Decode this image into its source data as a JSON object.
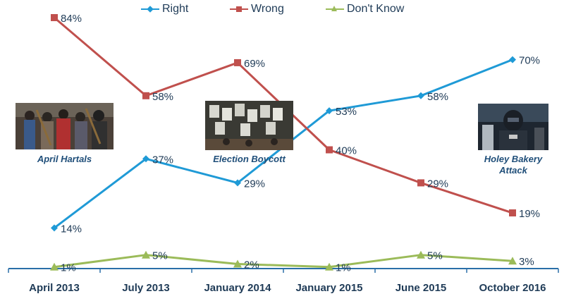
{
  "chart_data": {
    "type": "line",
    "categories": [
      "April 2013",
      "July 2013",
      "January 2014",
      "January 2015",
      "June 2015",
      "October 2016"
    ],
    "series": [
      {
        "name": "Right",
        "color": "#1f9ad6",
        "marker": "diamond",
        "values": [
          14,
          37,
          29,
          53,
          58,
          70
        ],
        "labels": [
          "14%",
          "37%",
          "29%",
          "53%",
          "58%",
          "70%"
        ]
      },
      {
        "name": "Wrong",
        "color": "#c0504d",
        "marker": "square",
        "values": [
          84,
          58,
          69,
          40,
          29,
          19
        ],
        "labels": [
          "84%",
          "58%",
          "69%",
          "40%",
          "29%",
          "19%"
        ]
      },
      {
        "name": "Don't Know",
        "color": "#9bbb59",
        "marker": "triangle",
        "values": [
          1,
          5,
          2,
          1,
          5,
          3
        ],
        "labels": [
          "1%",
          "5%",
          "2%",
          "1%",
          "5%",
          "3%"
        ]
      }
    ],
    "ylim": [
      0,
      90
    ],
    "grid": false,
    "legend_position": "top",
    "annotations": [
      {
        "text": "April Hartals",
        "category": "April 2013",
        "image": "protest-crowd-photo"
      },
      {
        "text": "Election Boycott",
        "category": "January 2014",
        "image": "election-posters-photo"
      },
      {
        "text": "Holey Bakery Attack",
        "category": "October 2016",
        "image": "armed-police-photo"
      }
    ]
  }
}
